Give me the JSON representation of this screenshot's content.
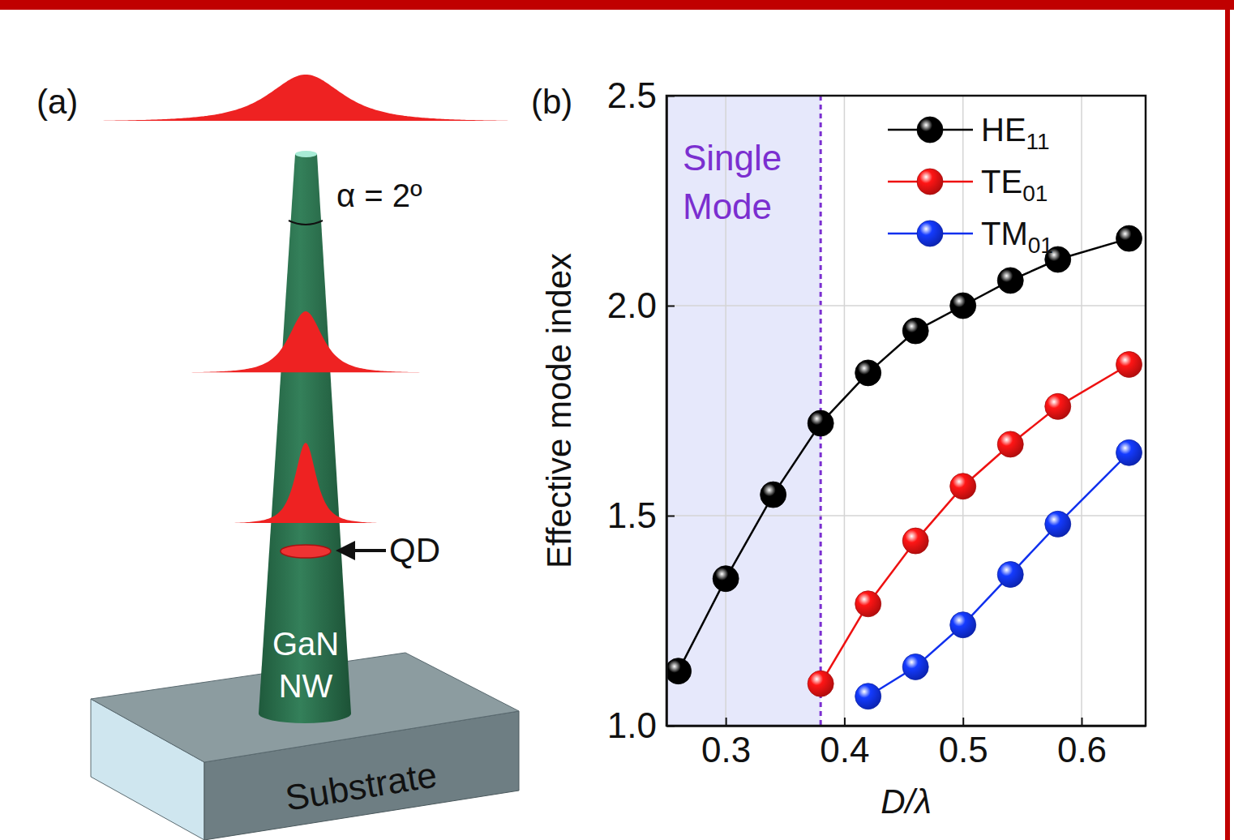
{
  "diagram": {
    "panel_label": "(a)",
    "angle_label": "α = 2º",
    "qd_label": "QD",
    "nanowire_label": "GaN NW",
    "substrate_label": "Substrate"
  },
  "chart_data": {
    "type": "line",
    "panel_label": "(b)",
    "x_label": "D/λ",
    "y_label": "Effective mode index",
    "x": [
      0.26,
      0.3,
      0.34,
      0.38,
      0.42,
      0.46,
      0.5,
      0.54,
      0.58,
      0.64
    ],
    "series": [
      {
        "name": "HE11",
        "color": "#000000",
        "marker": "sphere",
        "values": [
          1.13,
          1.35,
          1.55,
          1.72,
          1.84,
          1.94,
          2.0,
          2.06,
          2.11,
          2.16
        ]
      },
      {
        "name": "TE01",
        "color": "#ee1111",
        "marker": "sphere",
        "values": [
          null,
          null,
          null,
          1.1,
          1.29,
          1.44,
          1.57,
          1.67,
          1.76,
          1.86
        ]
      },
      {
        "name": "TM01",
        "color": "#1030ee",
        "marker": "sphere",
        "values": [
          null,
          null,
          null,
          null,
          1.07,
          1.14,
          1.24,
          1.36,
          1.48,
          1.65
        ]
      }
    ],
    "xlim": [
      0.25,
      0.654
    ],
    "xticks": [
      0.3,
      0.4,
      0.5,
      0.6
    ],
    "ylim": [
      1,
      2.5
    ],
    "yticks": [
      {
        "value": 1,
        "label": "1.0"
      },
      {
        "value": 1.5,
        "label": "1.5"
      },
      {
        "value": 2,
        "label": "2.0"
      },
      {
        "value": 2.5,
        "label": "2.5"
      }
    ],
    "grid": true,
    "legend": "upper right",
    "annotations": [
      {
        "text": "Single Mode",
        "x_start": 0.25,
        "x_end": 0.38,
        "color": "#7b2fd0"
      }
    ]
  }
}
